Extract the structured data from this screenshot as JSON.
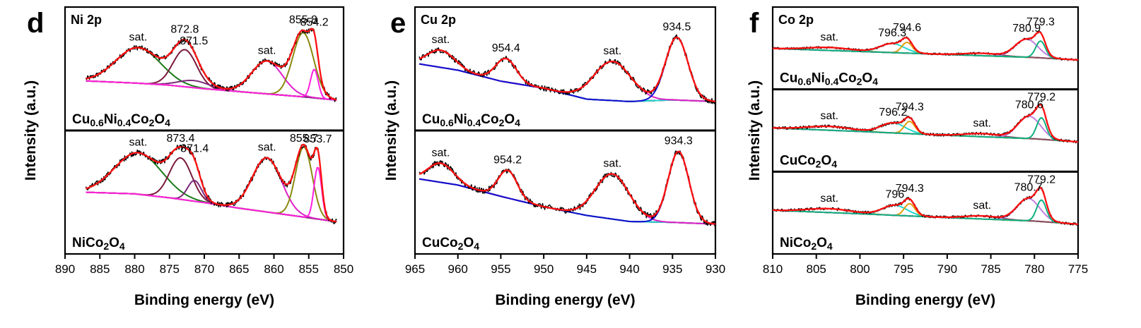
{
  "chart_data": [
    {
      "type": "line",
      "panel_letter": "d",
      "title": "Ni 2p",
      "xlabel": "Binding energy (eV)",
      "ylabel": "Intensity (a.u.)",
      "xlim": [
        890,
        850
      ],
      "x_reversed": true,
      "xticks": [
        "890",
        "885",
        "880",
        "875",
        "870",
        "865",
        "860",
        "855",
        "850"
      ],
      "x_range_measured": [
        887,
        851
      ],
      "grid": false,
      "stacks": [
        {
          "name": "Cu0.6Ni0.4Co2O4",
          "sample_parts": [
            [
              "Cu",
              ""
            ],
            [
              "0.6",
              "sub"
            ],
            [
              "Ni",
              ""
            ],
            [
              "0.4",
              "sub"
            ],
            [
              "Co",
              ""
            ],
            [
              "2",
              "sub"
            ],
            [
              "O",
              ""
            ],
            [
              "4",
              "sub"
            ]
          ],
          "annotations": [
            {
              "text": "sat.",
              "x": 879.5
            },
            {
              "text": "872.8",
              "x": 872.8
            },
            {
              "text": "871.5",
              "x": 871.5
            },
            {
              "text": "sat.",
              "x": 861.0
            },
            {
              "text": "855.8",
              "x": 855.8
            },
            {
              "text": "854.2",
              "x": 854.2
            }
          ],
          "background": [
            [
              887,
              0.3
            ],
            [
              880,
              0.27
            ],
            [
              875,
              0.24
            ],
            [
              870,
              0.19
            ],
            [
              865,
              0.15
            ],
            [
              860,
              0.11
            ],
            [
              855,
              0.07
            ],
            [
              851,
              0.03
            ]
          ],
          "peaks": [
            {
              "center": 879.5,
              "height": 0.5,
              "width": 3.2,
              "color": "#1a7a1a"
            },
            {
              "center": 872.8,
              "height": 0.52,
              "width": 1.7,
              "color": "#7a1a3c"
            },
            {
              "center": 871.5,
              "height": 0.1,
              "width": 2.2,
              "color": "#7a2a7a"
            },
            {
              "center": 861.0,
              "height": 0.46,
              "width": 2.2,
              "color": "#e020c8"
            },
            {
              "center": 855.8,
              "height": 0.9,
              "width": 1.5,
              "color": "#8a8a10"
            },
            {
              "center": 854.2,
              "height": 0.4,
              "width": 0.55,
              "color": "#ff20e0"
            }
          ],
          "fit_color": "#ff1010"
        },
        {
          "name": "NiCo2O4",
          "sample_parts": [
            [
              "Ni",
              ""
            ],
            [
              "Co",
              ""
            ],
            [
              "2",
              "sub"
            ],
            [
              "O",
              ""
            ],
            [
              "4",
              "sub"
            ]
          ],
          "annotations": [
            {
              "text": "sat.",
              "x": 879.5
            },
            {
              "text": "873.4",
              "x": 873.4
            },
            {
              "text": "871.4",
              "x": 871.4
            },
            {
              "text": "sat.",
              "x": 861.0
            },
            {
              "text": "855.7",
              "x": 855.7
            },
            {
              "text": "853.7",
              "x": 853.7
            }
          ],
          "background": [
            [
              887,
              0.42
            ],
            [
              880,
              0.4
            ],
            [
              875,
              0.35
            ],
            [
              870,
              0.29
            ],
            [
              865,
              0.22
            ],
            [
              860,
              0.16
            ],
            [
              855,
              0.1
            ],
            [
              851,
              0.05
            ]
          ],
          "peaks": [
            {
              "center": 879.5,
              "height": 0.52,
              "width": 3.4,
              "color": "#1a7a1a"
            },
            {
              "center": 873.4,
              "height": 0.52,
              "width": 1.6,
              "color": "#7a1a3c"
            },
            {
              "center": 871.4,
              "height": 0.26,
              "width": 1.0,
              "color": "#7a2a7a"
            },
            {
              "center": 861.0,
              "height": 0.68,
              "width": 2.1,
              "color": "#e020c8"
            },
            {
              "center": 855.7,
              "height": 0.88,
              "width": 1.2,
              "color": "#8a8a10"
            },
            {
              "center": 853.7,
              "height": 0.65,
              "width": 0.55,
              "color": "#ff20e0"
            }
          ],
          "fit_color": "#ff1010"
        }
      ]
    },
    {
      "type": "line",
      "panel_letter": "e",
      "title": "Cu 2p",
      "xlabel": "Binding energy (eV)",
      "ylabel": "Intensity (a.u.)",
      "xlim": [
        965,
        930
      ],
      "x_reversed": true,
      "xticks": [
        "965",
        "960",
        "955",
        "950",
        "945",
        "940",
        "935",
        "930"
      ],
      "x_range_measured": [
        964.5,
        930
      ],
      "grid": false,
      "stacks": [
        {
          "name": "Cu0.6Ni0.4Co2O4",
          "sample_parts": [
            [
              "Cu",
              ""
            ],
            [
              "0.6",
              "sub"
            ],
            [
              "Ni",
              ""
            ],
            [
              "0.4",
              "sub"
            ],
            [
              "Co",
              ""
            ],
            [
              "2",
              "sub"
            ],
            [
              "O",
              ""
            ],
            [
              "4",
              "sub"
            ]
          ],
          "annotations": [
            {
              "text": "sat.",
              "x": 962.0
            },
            {
              "text": "954.4",
              "x": 954.4
            },
            {
              "text": "sat.",
              "x": 942.0
            },
            {
              "text": "934.5",
              "x": 934.5
            }
          ],
          "background": [
            [
              964.5,
              0.58
            ],
            [
              960,
              0.5
            ],
            [
              955,
              0.36
            ],
            [
              950,
              0.27
            ],
            [
              945,
              0.13
            ],
            [
              940,
              0.1
            ],
            [
              935,
              0.12
            ],
            [
              930,
              0.1
            ]
          ],
          "peaks": [
            {
              "center": 962.0,
              "height": 0.22,
              "width": 1.6,
              "color": "#8a1a4a"
            },
            {
              "center": 954.4,
              "height": 0.3,
              "width": 1.2,
              "color": "#20d8d0"
            },
            {
              "center": 942.0,
              "height": 0.5,
              "width": 2.2,
              "color": "#e020c8"
            },
            {
              "center": 934.5,
              "height": 0.8,
              "width": 1.3,
              "color": "#1010d0"
            }
          ],
          "fit_color": "#ff1010"
        },
        {
          "name": "CuCo2O4",
          "sample_parts": [
            [
              "Cu",
              ""
            ],
            [
              "Co",
              ""
            ],
            [
              "2",
              "sub"
            ],
            [
              "O",
              ""
            ],
            [
              "4",
              "sub"
            ]
          ],
          "annotations": [
            {
              "text": "sat.",
              "x": 962.0
            },
            {
              "text": "954.2",
              "x": 954.2
            },
            {
              "text": "sat.",
              "x": 942.0
            },
            {
              "text": "934.3",
              "x": 934.3
            }
          ],
          "background": [
            [
              964.5,
              0.62
            ],
            [
              960,
              0.55
            ],
            [
              955,
              0.42
            ],
            [
              950,
              0.3
            ],
            [
              945,
              0.2
            ],
            [
              940,
              0.13
            ],
            [
              935,
              0.12
            ],
            [
              930,
              0.1
            ]
          ],
          "peaks": [
            {
              "center": 962.0,
              "height": 0.22,
              "width": 1.5,
              "color": "#8a1a4a"
            },
            {
              "center": 954.2,
              "height": 0.32,
              "width": 1.1,
              "color": "#20d8d0"
            },
            {
              "center": 942.0,
              "height": 0.52,
              "width": 2.0,
              "color": "#e020c8"
            },
            {
              "center": 934.3,
              "height": 0.82,
              "width": 1.2,
              "color": "#1010d0"
            }
          ],
          "fit_color": "#ff1010"
        }
      ]
    },
    {
      "type": "line",
      "panel_letter": "f",
      "title": "Co 2p",
      "xlabel": "Binding energy (eV)",
      "ylabel": "Intensity (a.u.)",
      "xlim": [
        810,
        775
      ],
      "x_reversed": true,
      "xticks": [
        "810",
        "805",
        "800",
        "795",
        "790",
        "785",
        "780",
        "775"
      ],
      "x_range_measured": [
        810,
        775
      ],
      "grid": false,
      "stacks": [
        {
          "name": "Cu0.6Ni0.4Co2O4",
          "sample_parts": [
            [
              "Cu",
              ""
            ],
            [
              "0.6",
              "sub"
            ],
            [
              "Ni",
              ""
            ],
            [
              "0.4",
              "sub"
            ],
            [
              "Co",
              ""
            ],
            [
              "2",
              "sub"
            ],
            [
              "O",
              ""
            ],
            [
              "4",
              "sub"
            ]
          ],
          "annotations": [
            {
              "text": "sat.",
              "x": 803.5
            },
            {
              "text": "796.3",
              "x": 796.3
            },
            {
              "text": "794.6",
              "x": 794.6
            },
            {
              "text": "780.9",
              "x": 780.9
            },
            {
              "text": "779.3",
              "x": 779.3
            }
          ],
          "background": [
            [
              810,
              0.42
            ],
            [
              800,
              0.32
            ],
            [
              790,
              0.22
            ],
            [
              780,
              0.12
            ],
            [
              775,
              0.04
            ]
          ],
          "peaks": [
            {
              "center": 803.5,
              "height": 0.1,
              "width": 2.5,
              "color": "#c8a020"
            },
            {
              "center": 796.3,
              "height": 0.3,
              "width": 1.4,
              "color": "#20d8d0"
            },
            {
              "center": 794.6,
              "height": 0.36,
              "width": 0.6,
              "color": "#e0a010"
            },
            {
              "center": 786.0,
              "height": 0.08,
              "width": 2.0,
              "color": "#8a4a6a"
            },
            {
              "center": 780.9,
              "height": 0.6,
              "width": 1.3,
              "color": "#c080e0"
            },
            {
              "center": 779.3,
              "height": 0.56,
              "width": 0.55,
              "color": "#10b080"
            }
          ],
          "fit_color": "#ff1010"
        },
        {
          "name": "CuCo2O4",
          "sample_parts": [
            [
              "Cu",
              ""
            ],
            [
              "Co",
              ""
            ],
            [
              "2",
              "sub"
            ],
            [
              "O",
              ""
            ],
            [
              "4",
              "sub"
            ]
          ],
          "annotations": [
            {
              "text": "sat.",
              "x": 803.5
            },
            {
              "text": "796.2",
              "x": 796.2
            },
            {
              "text": "794.3",
              "x": 794.3
            },
            {
              "text": "sat.",
              "x": 786.0
            },
            {
              "text": "780.6",
              "x": 780.6
            },
            {
              "text": "779.2",
              "x": 779.2
            }
          ],
          "background": [
            [
              810,
              0.4
            ],
            [
              800,
              0.31
            ],
            [
              790,
              0.21
            ],
            [
              780,
              0.12
            ],
            [
              775,
              0.04
            ]
          ],
          "peaks": [
            {
              "center": 803.5,
              "height": 0.1,
              "width": 2.5,
              "color": "#c8a020"
            },
            {
              "center": 796.2,
              "height": 0.26,
              "width": 1.4,
              "color": "#20d8d0"
            },
            {
              "center": 794.3,
              "height": 0.32,
              "width": 0.6,
              "color": "#e0a010"
            },
            {
              "center": 786.0,
              "height": 0.08,
              "width": 2.0,
              "color": "#8a4a6a"
            },
            {
              "center": 780.6,
              "height": 0.58,
              "width": 1.3,
              "color": "#c080e0"
            },
            {
              "center": 779.2,
              "height": 0.56,
              "width": 0.55,
              "color": "#10b080"
            }
          ],
          "fit_color": "#ff1010"
        },
        {
          "name": "NiCo2O4",
          "sample_parts": [
            [
              "Ni",
              ""
            ],
            [
              "Co",
              ""
            ],
            [
              "2",
              "sub"
            ],
            [
              "O",
              ""
            ],
            [
              "4",
              "sub"
            ]
          ],
          "annotations": [
            {
              "text": "sat.",
              "x": 803.5
            },
            {
              "text": "796",
              "x": 796.0
            },
            {
              "text": "794.3",
              "x": 794.3
            },
            {
              "text": "sat.",
              "x": 786.0
            },
            {
              "text": "780.7",
              "x": 780.7
            },
            {
              "text": "779.2",
              "x": 779.2
            }
          ],
          "background": [
            [
              810,
              0.4
            ],
            [
              800,
              0.31
            ],
            [
              790,
              0.21
            ],
            [
              780,
              0.12
            ],
            [
              775,
              0.04
            ]
          ],
          "peaks": [
            {
              "center": 803.5,
              "height": 0.1,
              "width": 2.5,
              "color": "#c8a020"
            },
            {
              "center": 796.0,
              "height": 0.26,
              "width": 1.4,
              "color": "#20d8d0"
            },
            {
              "center": 794.3,
              "height": 0.32,
              "width": 0.6,
              "color": "#e0a010"
            },
            {
              "center": 786.0,
              "height": 0.08,
              "width": 2.0,
              "color": "#8a4a6a"
            },
            {
              "center": 780.7,
              "height": 0.58,
              "width": 1.3,
              "color": "#c080e0"
            },
            {
              "center": 779.2,
              "height": 0.56,
              "width": 0.55,
              "color": "#10b080"
            }
          ],
          "fit_color": "#ff1010"
        }
      ]
    }
  ]
}
